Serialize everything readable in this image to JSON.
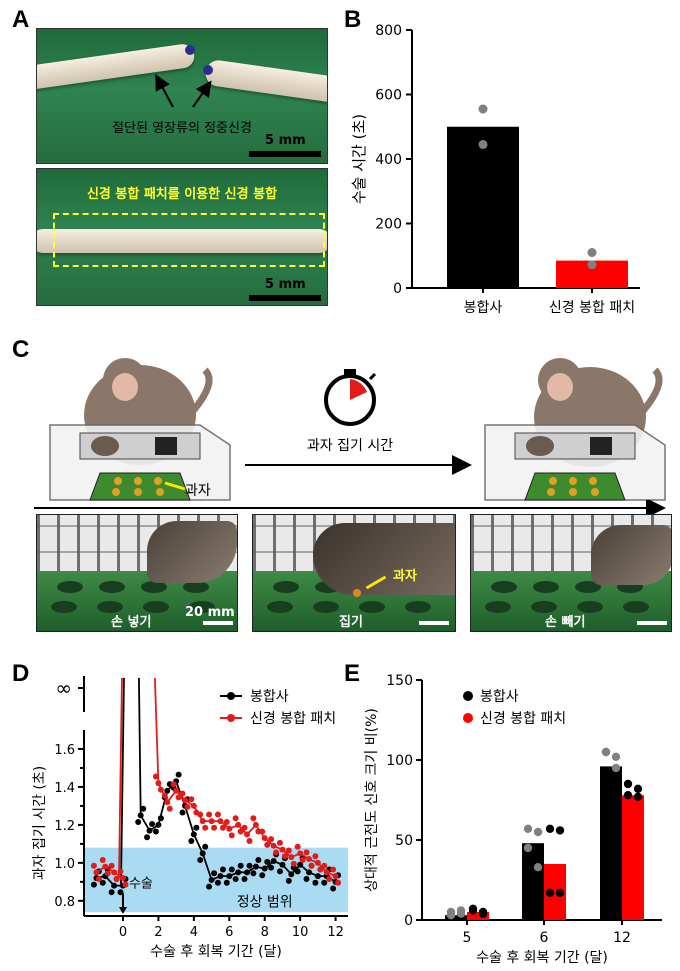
{
  "panels": {
    "a": "A",
    "b": "B",
    "c": "C",
    "d": "D",
    "e": "E"
  },
  "panel_a": {
    "top_label": "절단된 영장류의 정중신경",
    "scale_top": "5 mm",
    "bottom_label": "신경 봉합 패치를 이용한 신경 봉합",
    "scale_bottom": "5 mm"
  },
  "panel_c": {
    "snack_label": "과자",
    "arrow_label": "과자 집기 시간",
    "photo1_label": "손 넣기",
    "photo1_scale": "20 mm",
    "photo2_label": "집기",
    "photo2_snack": "과자",
    "photo3_label": "손 빼기"
  },
  "chart_data": [
    {
      "id": "B",
      "type": "bar",
      "categories": [
        "봉합사",
        "신경 봉합 패치"
      ],
      "values": [
        500,
        85
      ],
      "points": [
        [
          555,
          445
        ],
        [
          110,
          72
        ]
      ],
      "ylabel": "수술 시간 (초)",
      "ylim": [
        0,
        800
      ],
      "yticks": [
        0,
        200,
        400,
        600,
        800
      ],
      "colors": [
        "#000000",
        "#ff0000"
      ],
      "point_color": "#808080"
    },
    {
      "id": "D",
      "type": "line",
      "xlabel": "수술 후 회복 기간 (달)",
      "ylabel": "과자 집기 시간 (초)",
      "xticks": [
        0,
        2,
        4,
        6,
        8,
        10,
        12
      ],
      "yticks": [
        0.8,
        0.9,
        1.0,
        1.1,
        1.2,
        1.3,
        1.4,
        1.5,
        1.6
      ],
      "ytick_labels": [
        "0.8",
        "",
        "1.0",
        "",
        "1.2",
        "",
        "1.4",
        "",
        "1.6"
      ],
      "inf_label": "∞",
      "xlim": [
        -2.2,
        12.7
      ],
      "ylim": [
        0.72,
        1.7
      ],
      "normal_range": [
        0.74,
        1.08
      ],
      "normal_label": "정상 범위",
      "surgery_label": "수술",
      "series": [
        {
          "name": "봉합사",
          "color": "#000000",
          "x": [
            -1.5,
            -1.0,
            -0.5,
            0.0,
            1.0,
            1.5,
            2.0,
            2.5,
            3.0,
            3.5,
            4.0,
            4.5,
            5.0,
            5.5,
            6.0,
            6.5,
            7.0,
            7.5,
            8.0,
            8.5,
            9.0,
            9.5,
            10.0,
            10.5,
            11.0,
            11.5,
            12.0
          ],
          "y": [
            0.92,
            0.93,
            0.88,
            0.88,
            1.25,
            1.17,
            1.2,
            1.38,
            1.43,
            1.3,
            1.15,
            1.05,
            0.91,
            0.93,
            0.93,
            0.95,
            0.95,
            0.98,
            0.97,
            1.01,
            0.99,
            0.94,
            0.99,
            0.95,
            0.93,
            0.93,
            0.9
          ]
        },
        {
          "name": "신경 봉합 패치",
          "color": "#e21b1b",
          "x": [
            -1.5,
            -1.0,
            -0.5,
            0.0,
            2.0,
            2.5,
            3.0,
            3.5,
            4.0,
            4.5,
            5.0,
            5.5,
            6.0,
            6.5,
            7.0,
            7.5,
            8.0,
            8.5,
            9.0,
            9.5,
            10.0,
            10.5,
            11.0,
            11.5,
            12.0
          ],
          "y": [
            0.95,
            0.98,
            0.95,
            0.92,
            1.42,
            1.32,
            1.38,
            1.33,
            1.3,
            1.22,
            1.22,
            1.22,
            1.18,
            1.2,
            1.15,
            1.2,
            1.13,
            1.09,
            1.07,
            1.03,
            1.05,
            1.02,
            1.0,
            0.95,
            0.93
          ]
        }
      ]
    },
    {
      "id": "E",
      "type": "bar",
      "categories": [
        "5",
        "6",
        "12"
      ],
      "xlabel": "수술 후 회복 기간 (달)",
      "ylabel": "상대적 근전도 신호 크기 비(%)",
      "ylim": [
        0,
        150
      ],
      "yticks": [
        0,
        50,
        100,
        150
      ],
      "series": [
        {
          "name": "봉합사",
          "color": "#000000",
          "values": [
            3,
            48,
            96
          ],
          "points": [
            [
              5,
              4,
              3,
              6
            ],
            [
              57,
              55,
              45,
              33
            ],
            [
              105,
              102,
              105,
              95
            ]
          ]
        },
        {
          "name": "신경 봉합 패치",
          "color": "#ff0000",
          "values": [
            5,
            35,
            78
          ],
          "points": [
            [
              6,
              5,
              7,
              4
            ],
            [
              57,
              56,
              17,
              17
            ],
            [
              85,
              82,
              78,
              77
            ]
          ]
        }
      ]
    }
  ]
}
